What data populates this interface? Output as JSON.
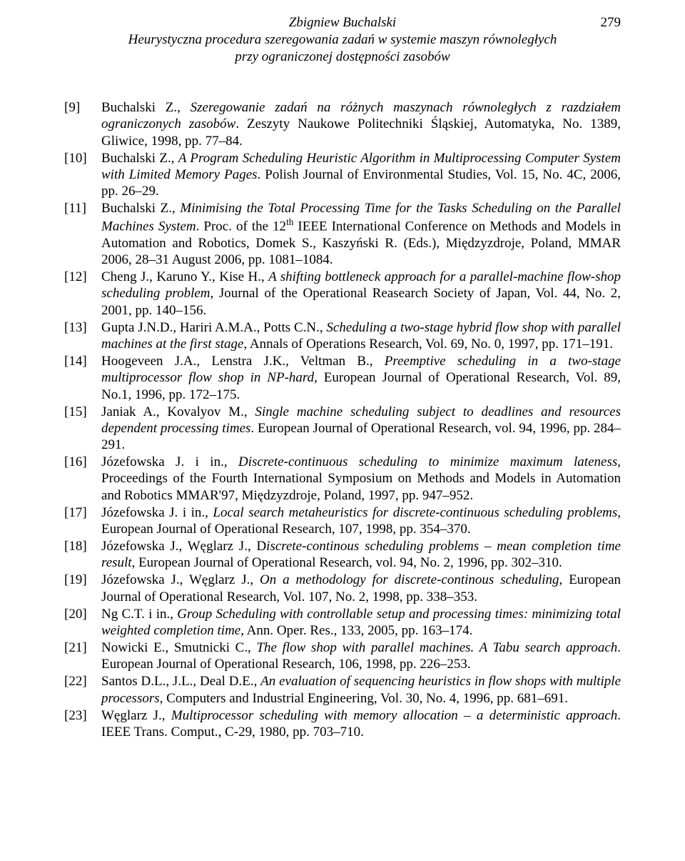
{
  "header": {
    "author": "Zbigniew Buchalski",
    "title_line1": "Heurystyczna procedura szeregowania zadań w systemie maszyn równoległych",
    "title_line2": "przy ograniczonej dostępności zasobów",
    "page_number": "279"
  },
  "references": [
    {
      "key": "[9]",
      "authors": "Buchalski Z., ",
      "title_italic": "Szeregowanie zadań na różnych maszynach równoległych z razdziałem ograniczonych zasobów",
      "rest": ". Zeszyty Naukowe Politechniki Śląskiej, Automatyka, No. 1389, Gliwice, 1998, pp. 77–84."
    },
    {
      "key": "[10]",
      "authors": "Buchalski Z., ",
      "title_italic": "A Program Scheduling Heuristic Algorithm in Multiprocessing Computer System with Limited Memory Pages",
      "rest": ". Polish Journal of Environmental Studies, Vol. 15, No. 4C, 2006, pp. 26–29."
    },
    {
      "key": "[11]",
      "authors": "Buchalski Z., ",
      "title_italic": "Minimising the Total Processing Time for the Tasks Scheduling on the Parallel Machines System",
      "rest": ". Proc. of the 12",
      "sup": "th",
      "rest2": " IEEE International Conference on Methods and Models in Automation and Robotics, Domek S., Kaszyński R. (Eds.), Międzyzdroje, Poland, MMAR 2006, 28–31 August 2006, pp. 1081–1084."
    },
    {
      "key": "[12]",
      "authors": "Cheng J., Karuno Y., Kise H., ",
      "title_italic": "A shifting bottleneck approach for a parallel-machine flow-shop scheduling problem",
      "rest": ", Journal of the Operational Reasearch Society of Japan, Vol. 44, No. 2, 2001, pp. 140–156."
    },
    {
      "key": "[13]",
      "authors": "Gupta J.N.D., Hariri A.M.A., Potts C.N., ",
      "title_italic": "Scheduling a two-stage hybrid flow shop with parallel machines at the first stage",
      "rest": ", Annals of Operations Research, Vol. 69, No. 0, 1997, pp. 171–191."
    },
    {
      "key": "[14]",
      "authors": "Hoogeveen J.A., Lenstra J.K., Veltman B., ",
      "title_italic": "Preemptive scheduling in a two-stage multiprocessor flow shop in NP-hard",
      "rest": ", European Journal of Operational Research, Vol. 89, No.1, 1996, pp. 172–175."
    },
    {
      "key": "[15]",
      "authors": "Janiak A., Kovalyov M., ",
      "title_italic": "Single machine scheduling subject to deadlines and resources dependent processing times",
      "rest": ". European Journal of Operational Research, vol. 94, 1996, pp. 284–291."
    },
    {
      "key": "[16]",
      "authors": "Józefowska J. i in., ",
      "title_italic": "Discrete-continuous scheduling to minimize maximum lateness",
      "rest": ", Proceedings of the Fourth International Symposium on Methods and Models in Automation and Robotics MMAR'97, Międzyzdroje, Poland, 1997, pp. 947–952."
    },
    {
      "key": "[17]",
      "authors": "Józefowska J. i in., ",
      "title_italic": "Local search metaheuristics for discrete-continuous scheduling problems",
      "rest": ", European Journal of Operational Research, 107, 1998, pp. 354–370."
    },
    {
      "key": "[18]",
      "authors": "Józefowska J., Węglarz J., D",
      "title_italic": "iscrete-continous scheduling problems – mean completion time result",
      "rest": ", European Journal of Operational Research, vol. 94, No. 2, 1996, pp. 302–310."
    },
    {
      "key": "[19]",
      "authors": "Józefowska J., Węglarz J., ",
      "title_italic": "On a methodology for discrete-continous scheduling",
      "rest": ", European Journal of Operational Research, Vol. 107, No. 2, 1998, pp. 338–353."
    },
    {
      "key": "[20]",
      "authors": "Ng C.T. i in., ",
      "title_italic": "Group Scheduling with controllable setup and processing times: minimizing total weighted completion time",
      "rest": ", Ann. Oper. Res., 133, 2005, pp. 163–174."
    },
    {
      "key": "[21]",
      "authors": "Nowicki E., Smutnicki C., ",
      "title_italic": "The flow shop with parallel machines. A Tabu search approach",
      "rest": ". European Journal of Operational Research, 106, 1998, pp. 226–253."
    },
    {
      "key": "[22]",
      "authors": "Santos D.L., J.L., Deal D.E., ",
      "title_italic": "An evaluation of sequencing heuristics in flow shops with multiple processors",
      "rest": ", Computers and Industrial Engineering, Vol. 30, No. 4, 1996, pp. 681–691."
    },
    {
      "key": "[23]",
      "authors": "Węglarz J., ",
      "title_italic": "Multiprocessor scheduling with memory allocation – a deterministic approach",
      "rest": ". IEEE Trans. Comput., C-29, 1980, pp. 703–710."
    }
  ]
}
